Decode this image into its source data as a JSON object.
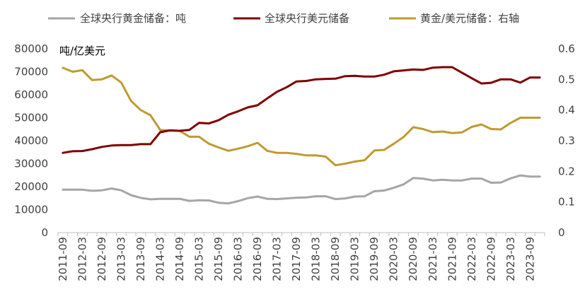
{
  "chart_data": {
    "type": "line",
    "x": [
      "2011-09",
      "2011-12",
      "2012-03",
      "2012-06",
      "2012-09",
      "2012-12",
      "2013-03",
      "2013-06",
      "2013-09",
      "2013-12",
      "2014-03",
      "2014-06",
      "2014-09",
      "2014-12",
      "2015-03",
      "2015-06",
      "2015-09",
      "2015-12",
      "2016-03",
      "2016-06",
      "2016-09",
      "2016-12",
      "2017-03",
      "2017-06",
      "2017-09",
      "2017-12",
      "2018-03",
      "2018-06",
      "2018-09",
      "2018-12",
      "2019-03",
      "2019-06",
      "2019-09",
      "2019-12",
      "2020-03",
      "2020-06",
      "2020-09",
      "2020-12",
      "2021-03",
      "2021-06",
      "2021-09",
      "2021-12",
      "2022-03",
      "2022-06",
      "2022-09",
      "2022-12",
      "2023-03",
      "2023-06",
      "2023-09",
      "2023-12"
    ],
    "x_tick_labels": [
      "2011-09",
      "2012-03",
      "2012-09",
      "2013-03",
      "2013-09",
      "2014-03",
      "2014-09",
      "2015-03",
      "2015-09",
      "2016-03",
      "2016-09",
      "2017-03",
      "2017-09",
      "2018-03",
      "2018-09",
      "2019-03",
      "2019-09",
      "2020-03",
      "2020-09",
      "2021-03",
      "2021-09",
      "2022-03",
      "2022-09",
      "2023-03",
      "2023-09"
    ],
    "left_axis": {
      "unit_label": "吨/亿美元",
      "ylim": [
        0,
        80000
      ],
      "ticks": [
        "0",
        "10000",
        "20000",
        "30000",
        "40000",
        "50000",
        "60000",
        "70000",
        "80000"
      ]
    },
    "right_axis": {
      "ylim": [
        0,
        0.6
      ],
      "ticks": [
        "0",
        "0.1",
        "0.2",
        "0.3",
        "0.4",
        "0.5",
        "0.6"
      ]
    },
    "legend_position": "top",
    "grid": false,
    "series": [
      {
        "name": "全球央行黄金储备：吨",
        "axis": "left",
        "color": "#a6a6a6",
        "values": [
          18700,
          18700,
          18700,
          18200,
          18400,
          19200,
          18400,
          16300,
          15100,
          14500,
          14700,
          14700,
          14700,
          13800,
          14100,
          14000,
          13000,
          12700,
          13700,
          15000,
          15700,
          14700,
          14600,
          14900,
          15200,
          15300,
          15800,
          15800,
          14600,
          14900,
          15700,
          15800,
          18000,
          18300,
          19500,
          21000,
          23800,
          23500,
          22700,
          23000,
          22700,
          22700,
          23500,
          23500,
          21700,
          21800,
          23600,
          24900,
          24400,
          24400
        ]
      },
      {
        "name": "全球央行美元储备",
        "axis": "left",
        "color": "#7f0000",
        "values": [
          34700,
          35400,
          35500,
          36300,
          37300,
          37900,
          38100,
          38100,
          38500,
          38500,
          43700,
          44500,
          44300,
          44700,
          47800,
          47500,
          48900,
          51300,
          52800,
          54500,
          55400,
          58400,
          61300,
          63300,
          65800,
          66000,
          66700,
          66900,
          67000,
          68100,
          68200,
          67900,
          67900,
          68700,
          70200,
          70600,
          71000,
          70800,
          71800,
          72000,
          72000,
          69600,
          67200,
          64900,
          65200,
          66700,
          66700,
          65300,
          67500,
          67500
        ]
      },
      {
        "name": "黄金/美元储备：右轴",
        "axis": "right",
        "color": "#c09a31",
        "values": [
          0.538,
          0.525,
          0.53,
          0.498,
          0.5,
          0.513,
          0.49,
          0.43,
          0.4,
          0.383,
          0.335,
          0.333,
          0.332,
          0.313,
          0.313,
          0.29,
          0.278,
          0.267,
          0.274,
          0.282,
          0.293,
          0.267,
          0.26,
          0.26,
          0.257,
          0.252,
          0.252,
          0.248,
          0.22,
          0.225,
          0.232,
          0.236,
          0.268,
          0.27,
          0.29,
          0.312,
          0.344,
          0.338,
          0.328,
          0.33,
          0.325,
          0.327,
          0.345,
          0.353,
          0.338,
          0.337,
          0.358,
          0.375,
          0.375,
          0.375
        ]
      }
    ]
  }
}
